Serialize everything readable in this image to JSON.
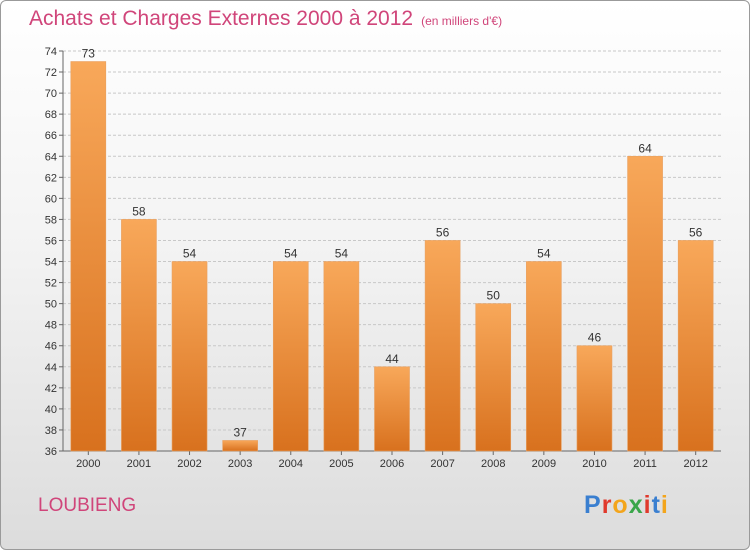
{
  "header": {
    "title": "Achats et Charges Externes 2000 à 2012",
    "subtitle": "(en milliers d'€)"
  },
  "footer": {
    "place": "LOUBIENG",
    "logo": "Proxiti"
  },
  "colors": {
    "bar_top": "#f8a85a",
    "bar_bottom": "#d8711e",
    "title": "#d0457a"
  },
  "chart_data": {
    "type": "bar",
    "title": "Achats et Charges Externes 2000 à 2012",
    "subtitle": "(en milliers d'€)",
    "categories": [
      "2000",
      "2001",
      "2002",
      "2003",
      "2004",
      "2005",
      "2006",
      "2007",
      "2008",
      "2009",
      "2010",
      "2011",
      "2012"
    ],
    "values": [
      73,
      58,
      54,
      37,
      54,
      54,
      44,
      56,
      50,
      54,
      46,
      64,
      56
    ],
    "ylim": [
      36,
      74
    ],
    "yticks": [
      36,
      38,
      40,
      42,
      44,
      46,
      48,
      50,
      52,
      54,
      56,
      58,
      60,
      62,
      64,
      66,
      68,
      70,
      72,
      74
    ],
    "grid": true,
    "data_labels": true
  }
}
